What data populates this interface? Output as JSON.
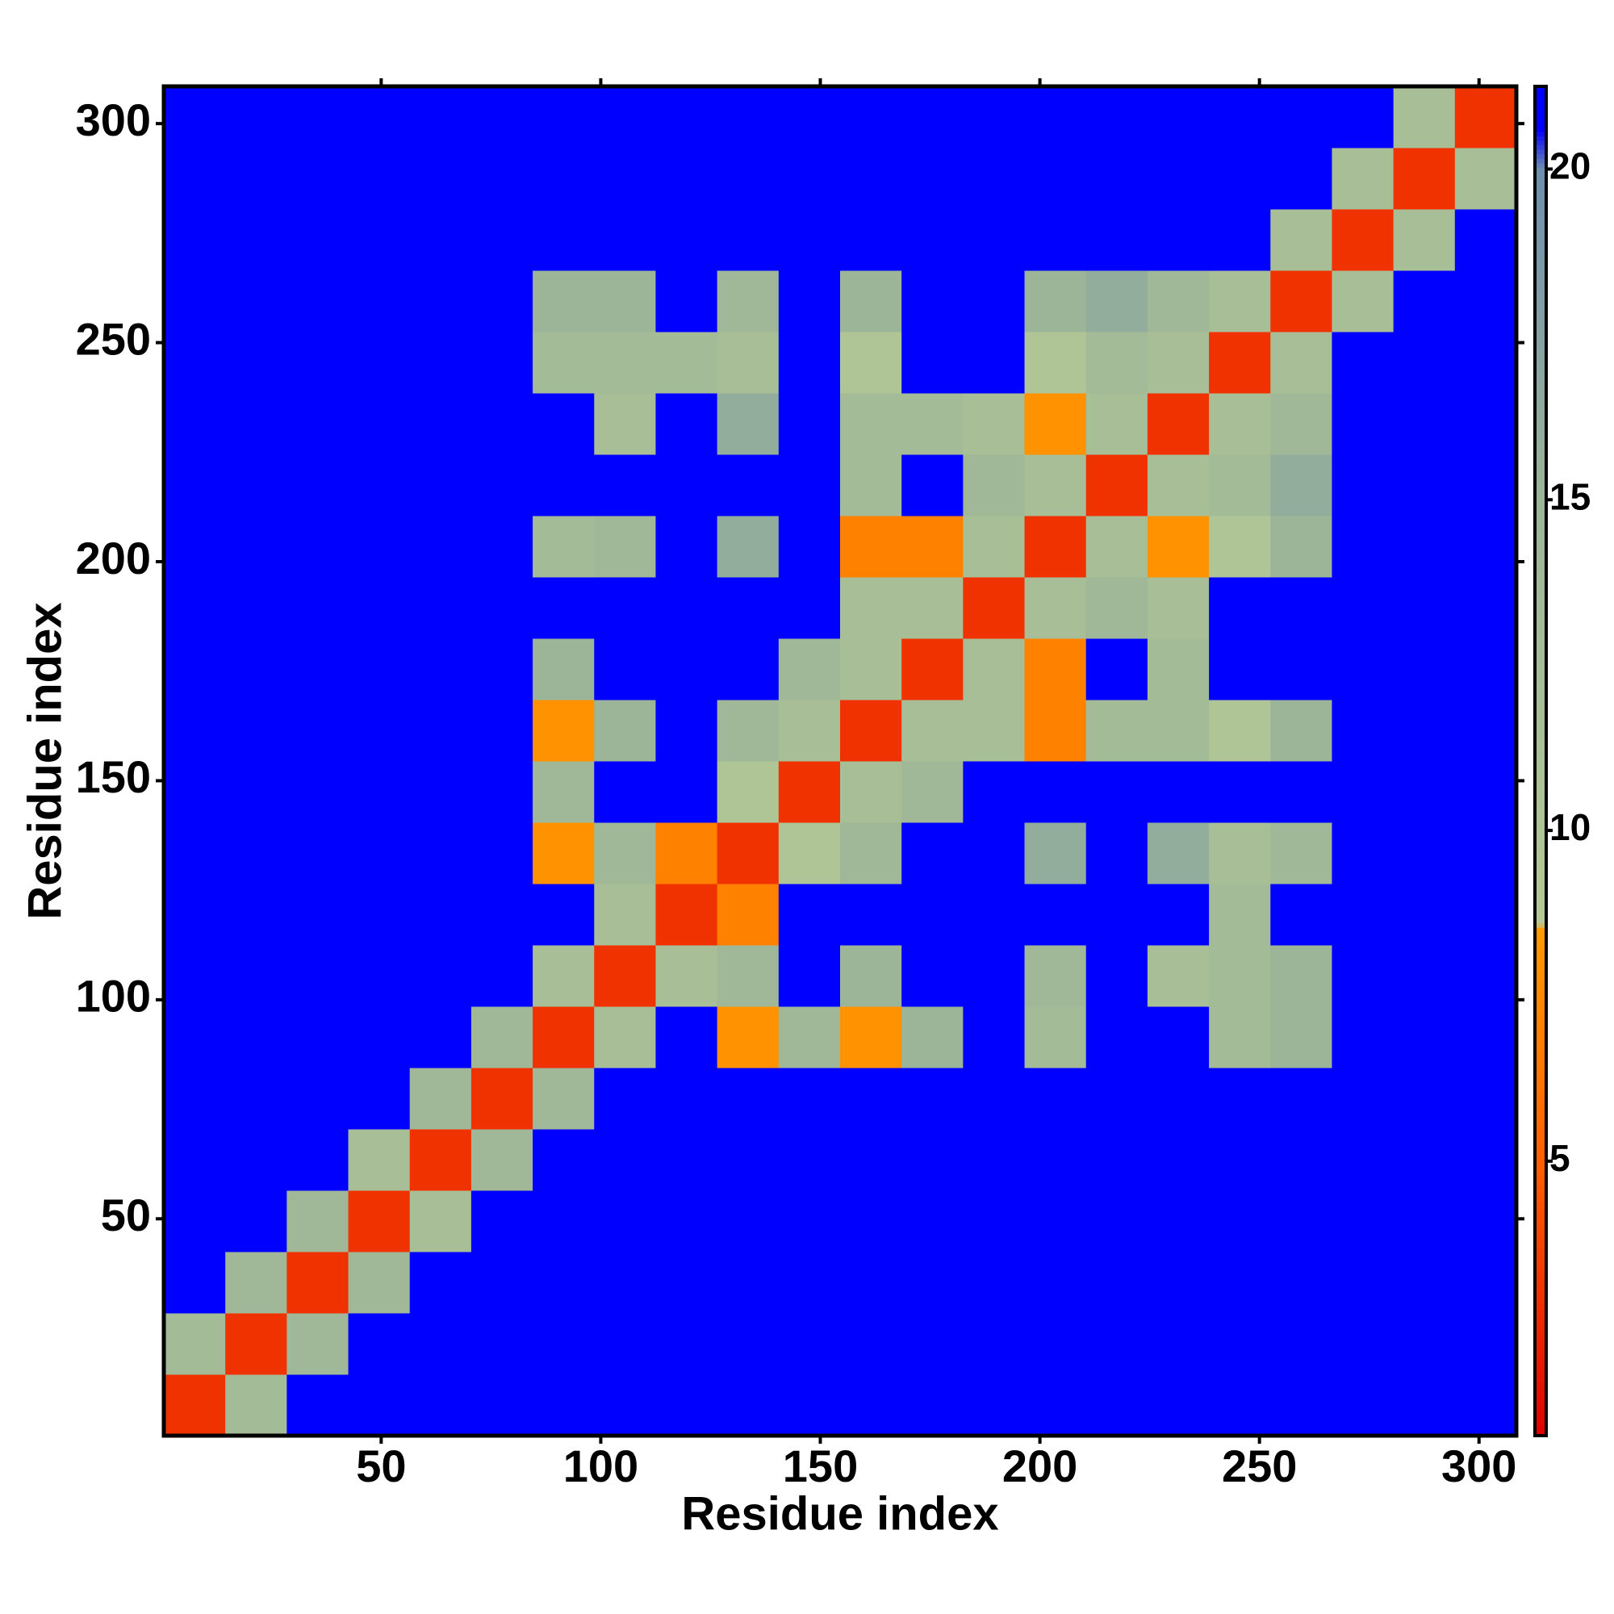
{
  "chart_data": {
    "type": "heatmap",
    "x_label": "Residue index",
    "y_label": "Residue index",
    "xbins": [
      0.5,
      14.5,
      28.5,
      42.5,
      56.5,
      70.5,
      84.5,
      98.5,
      112.5,
      126.5,
      140.5,
      154.5,
      168.5,
      182.5,
      196.5,
      210.5,
      224.5,
      238.5,
      252.5,
      266.5,
      280.5,
      294.5,
      308.5
    ],
    "ybins": [
      0.5,
      14.5,
      28.5,
      42.5,
      56.5,
      70.5,
      84.5,
      98.5,
      112.5,
      126.5,
      140.5,
      154.5,
      168.5,
      182.5,
      196.5,
      210.5,
      224.5,
      238.5,
      252.5,
      266.5,
      280.5,
      294.5,
      308.5
    ],
    "xlim": [
      0.5,
      308.5
    ],
    "ylim": [
      0.5,
      308.5
    ],
    "xticks": [
      50,
      100,
      150,
      200,
      250,
      300
    ],
    "yticks": [
      50,
      100,
      150,
      200,
      250,
      300
    ],
    "clim": [
      0.85,
      21.25
    ],
    "cticks": [
      5,
      10,
      15,
      20
    ],
    "colorscale": [
      [
        0.85,
        "#e00000"
      ],
      [
        5,
        "#ff6000"
      ],
      [
        8.5,
        "#ff9a00"
      ],
      [
        8.6,
        "#b4c994"
      ],
      [
        15,
        "#9cb598"
      ],
      [
        20,
        "#6d8fae"
      ],
      [
        20.6,
        "#0000ff"
      ],
      [
        21.25,
        "#0000ff"
      ]
    ],
    "values": [
      [
        3,
        13,
        21,
        21,
        21,
        21,
        21,
        21,
        21,
        21,
        21,
        21,
        21,
        21,
        21,
        21,
        21,
        21,
        21,
        21,
        21,
        21
      ],
      [
        13,
        3,
        14,
        21,
        21,
        21,
        21,
        21,
        21,
        21,
        21,
        21,
        21,
        21,
        21,
        21,
        21,
        21,
        21,
        21,
        21,
        21
      ],
      [
        21,
        14,
        3,
        14,
        21,
        21,
        21,
        21,
        21,
        21,
        21,
        21,
        21,
        21,
        21,
        21,
        21,
        21,
        21,
        21,
        21,
        21
      ],
      [
        21,
        21,
        14,
        3,
        12,
        21,
        21,
        21,
        21,
        21,
        21,
        21,
        21,
        21,
        21,
        21,
        21,
        21,
        21,
        21,
        21,
        21
      ],
      [
        21,
        21,
        21,
        12,
        3,
        14,
        21,
        21,
        21,
        21,
        21,
        21,
        21,
        21,
        21,
        21,
        21,
        21,
        21,
        21,
        21,
        21
      ],
      [
        21,
        21,
        21,
        21,
        14,
        3,
        14,
        21,
        21,
        21,
        21,
        21,
        21,
        21,
        21,
        21,
        21,
        21,
        21,
        21,
        21,
        21
      ],
      [
        21,
        21,
        21,
        21,
        21,
        14,
        3,
        12,
        21,
        8,
        14,
        8,
        15,
        21,
        13,
        21,
        21,
        13,
        15,
        21,
        21,
        21
      ],
      [
        21,
        21,
        21,
        21,
        21,
        21,
        12,
        3,
        12,
        14,
        21,
        15,
        21,
        21,
        14,
        21,
        12,
        13,
        15,
        21,
        21,
        21
      ],
      [
        21,
        21,
        21,
        21,
        21,
        21,
        21,
        12,
        3,
        7,
        21,
        21,
        21,
        21,
        21,
        21,
        21,
        13,
        21,
        21,
        21,
        21
      ],
      [
        21,
        21,
        21,
        21,
        21,
        21,
        8,
        14,
        7,
        3,
        10,
        14,
        21,
        21,
        16,
        21,
        16,
        12,
        14,
        21,
        21,
        21
      ],
      [
        21,
        21,
        21,
        21,
        21,
        21,
        14,
        21,
        21,
        10,
        3,
        12,
        14,
        21,
        21,
        21,
        21,
        21,
        21,
        21,
        21,
        21
      ],
      [
        21,
        21,
        21,
        21,
        21,
        21,
        8,
        15,
        21,
        14,
        12,
        3,
        12,
        12,
        7,
        13,
        13,
        10,
        15,
        21,
        21,
        21
      ],
      [
        21,
        21,
        21,
        21,
        21,
        21,
        15,
        21,
        21,
        21,
        14,
        12,
        3,
        12,
        7,
        21,
        13,
        21,
        21,
        21,
        21,
        21
      ],
      [
        21,
        21,
        21,
        21,
        21,
        21,
        21,
        21,
        21,
        21,
        21,
        12,
        12,
        3,
        12,
        14,
        12,
        21,
        21,
        21,
        21,
        21
      ],
      [
        21,
        21,
        21,
        21,
        21,
        21,
        13,
        14,
        21,
        16,
        21,
        7,
        7,
        12,
        3,
        12,
        8,
        10,
        15,
        21,
        21,
        21
      ],
      [
        21,
        21,
        21,
        21,
        21,
        21,
        21,
        21,
        21,
        21,
        21,
        13,
        21,
        14,
        12,
        3,
        12,
        13,
        16,
        21,
        21,
        21
      ],
      [
        21,
        21,
        21,
        21,
        21,
        21,
        21,
        12,
        21,
        16,
        21,
        13,
        13,
        12,
        8,
        12,
        3,
        12,
        14,
        21,
        21,
        21
      ],
      [
        21,
        21,
        21,
        21,
        21,
        21,
        13,
        13,
        13,
        12,
        21,
        10,
        21,
        21,
        10,
        13,
        12,
        3,
        12,
        21,
        21,
        21
      ],
      [
        21,
        21,
        21,
        21,
        21,
        21,
        15,
        15,
        21,
        14,
        21,
        15,
        21,
        21,
        15,
        16,
        14,
        12,
        3,
        12,
        21,
        21
      ],
      [
        21,
        21,
        21,
        21,
        21,
        21,
        21,
        21,
        21,
        21,
        21,
        21,
        21,
        21,
        21,
        21,
        21,
        21,
        12,
        3,
        12,
        21
      ],
      [
        21,
        21,
        21,
        21,
        21,
        21,
        21,
        21,
        21,
        21,
        21,
        21,
        21,
        21,
        21,
        21,
        21,
        21,
        21,
        12,
        3,
        12
      ],
      [
        21,
        21,
        21,
        21,
        21,
        21,
        21,
        21,
        21,
        21,
        21,
        21,
        21,
        21,
        21,
        21,
        21,
        21,
        21,
        21,
        12,
        3
      ]
    ]
  }
}
